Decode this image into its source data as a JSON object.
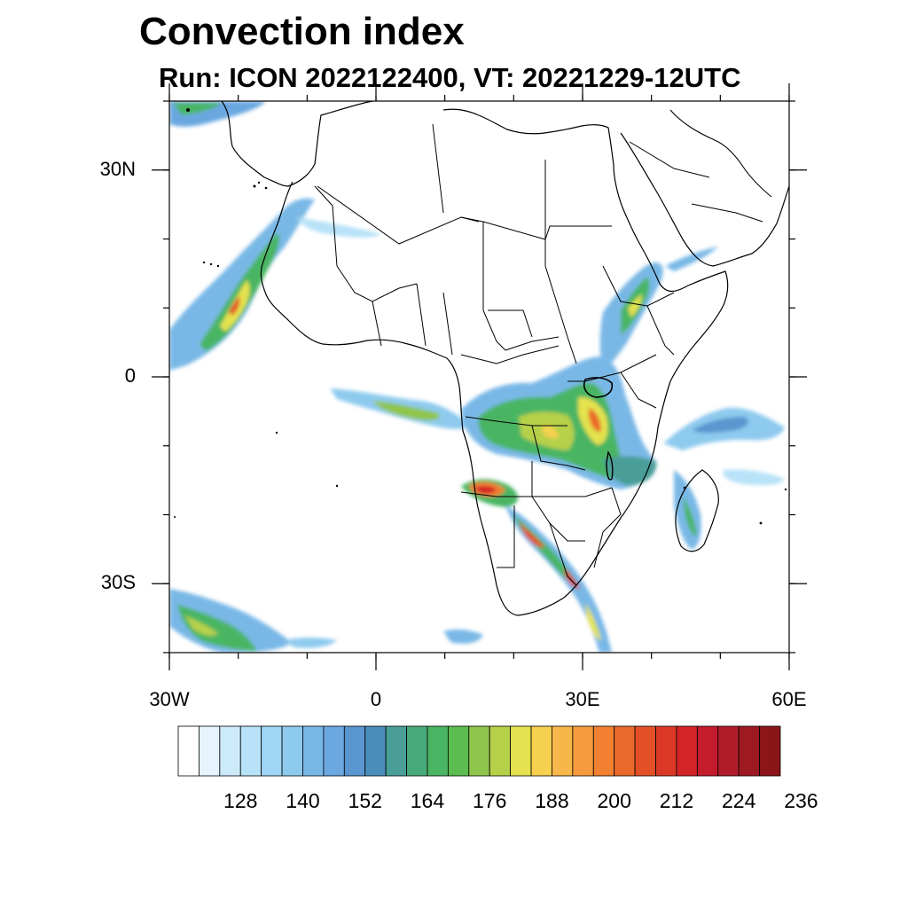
{
  "title": "Convection index",
  "subtitle": "Run: ICON 2022122400,  VT: 20221229-12UTC",
  "map": {
    "extent": {
      "lon_min": -30,
      "lon_max": 60,
      "lat_min": -40,
      "lat_max": 40
    },
    "lon_ticks": [
      {
        "lon": -30,
        "label": "30W"
      },
      {
        "lon": 0,
        "label": "0"
      },
      {
        "lon": 30,
        "label": "30E"
      },
      {
        "lon": 60,
        "label": "60E"
      }
    ],
    "lat_ticks": [
      {
        "lat": 30,
        "label": "30N"
      },
      {
        "lat": 0,
        "label": "0"
      },
      {
        "lat": -30,
        "label": "30S"
      }
    ],
    "minor_lon_step": 10,
    "minor_lat_step": 10,
    "features": [
      "coastlines",
      "country-borders",
      "lakes"
    ]
  },
  "colorbar": {
    "colors": [
      "#ffffff",
      "#e6f5fd",
      "#cdeafa",
      "#b8e2f8",
      "#a0d6f5",
      "#8ecaee",
      "#79b8e6",
      "#6ba7e0",
      "#5a96cf",
      "#4a8ebc",
      "#4a9e98",
      "#48aa7a",
      "#4ab563",
      "#5bbd4f",
      "#8fc54c",
      "#b7d04a",
      "#e4e24e",
      "#f6d04f",
      "#f8b74a",
      "#f59b3e",
      "#f18131",
      "#ea6a2b",
      "#e34f27",
      "#dc3826",
      "#d42427",
      "#c41c2c",
      "#b01c29",
      "#9e1a22",
      "#8b1518"
    ],
    "labels": [
      {
        "value": 128,
        "index": 3
      },
      {
        "value": 140,
        "index": 6
      },
      {
        "value": 152,
        "index": 9
      },
      {
        "value": 164,
        "index": 12
      },
      {
        "value": 176,
        "index": 15
      },
      {
        "value": 188,
        "index": 18
      },
      {
        "value": 200,
        "index": 21
      },
      {
        "value": 212,
        "index": 24
      },
      {
        "value": 224,
        "index": 27
      },
      {
        "value": 236,
        "index": 30
      }
    ]
  }
}
